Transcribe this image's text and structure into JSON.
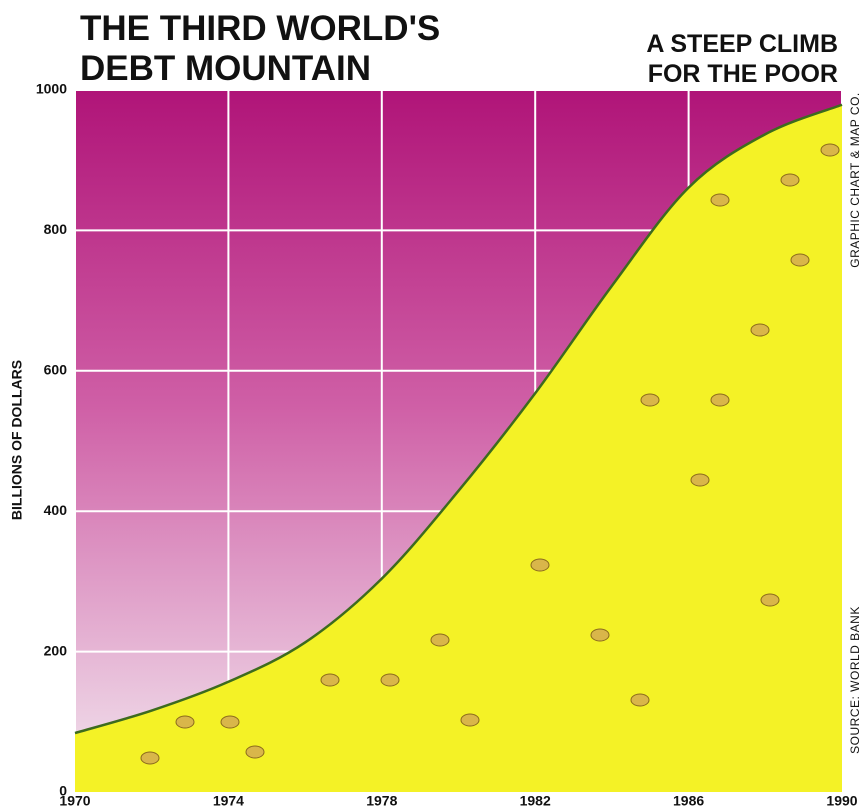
{
  "chart_data": {
    "type": "area",
    "title": [
      "THE THIRD WORLD'S",
      "DEBT MOUNTAIN"
    ],
    "subtitle": [
      "A STEEP CLIMB",
      "FOR THE POOR"
    ],
    "y_label": "BILLIONS OF DOLLARS",
    "credit": "GRAPHIC CHART & MAP CO.",
    "source": "SOURCE: WORLD BANK",
    "x": [
      1970,
      1972,
      1974,
      1976,
      1978,
      1980,
      1982,
      1984,
      1986,
      1988,
      1990
    ],
    "values": [
      84,
      116,
      157,
      213,
      304,
      429,
      568,
      721,
      861,
      937,
      979
    ],
    "color": "#f4f226",
    "line_color": "#3d6b1e",
    "xlim": [
      1970,
      1990
    ],
    "ylim": [
      0,
      1000
    ],
    "xticks": [
      1970,
      1974,
      1978,
      1982,
      1986,
      1990
    ],
    "yticks": [
      0,
      200,
      400,
      600,
      800,
      1000
    ],
    "grid": true
  }
}
